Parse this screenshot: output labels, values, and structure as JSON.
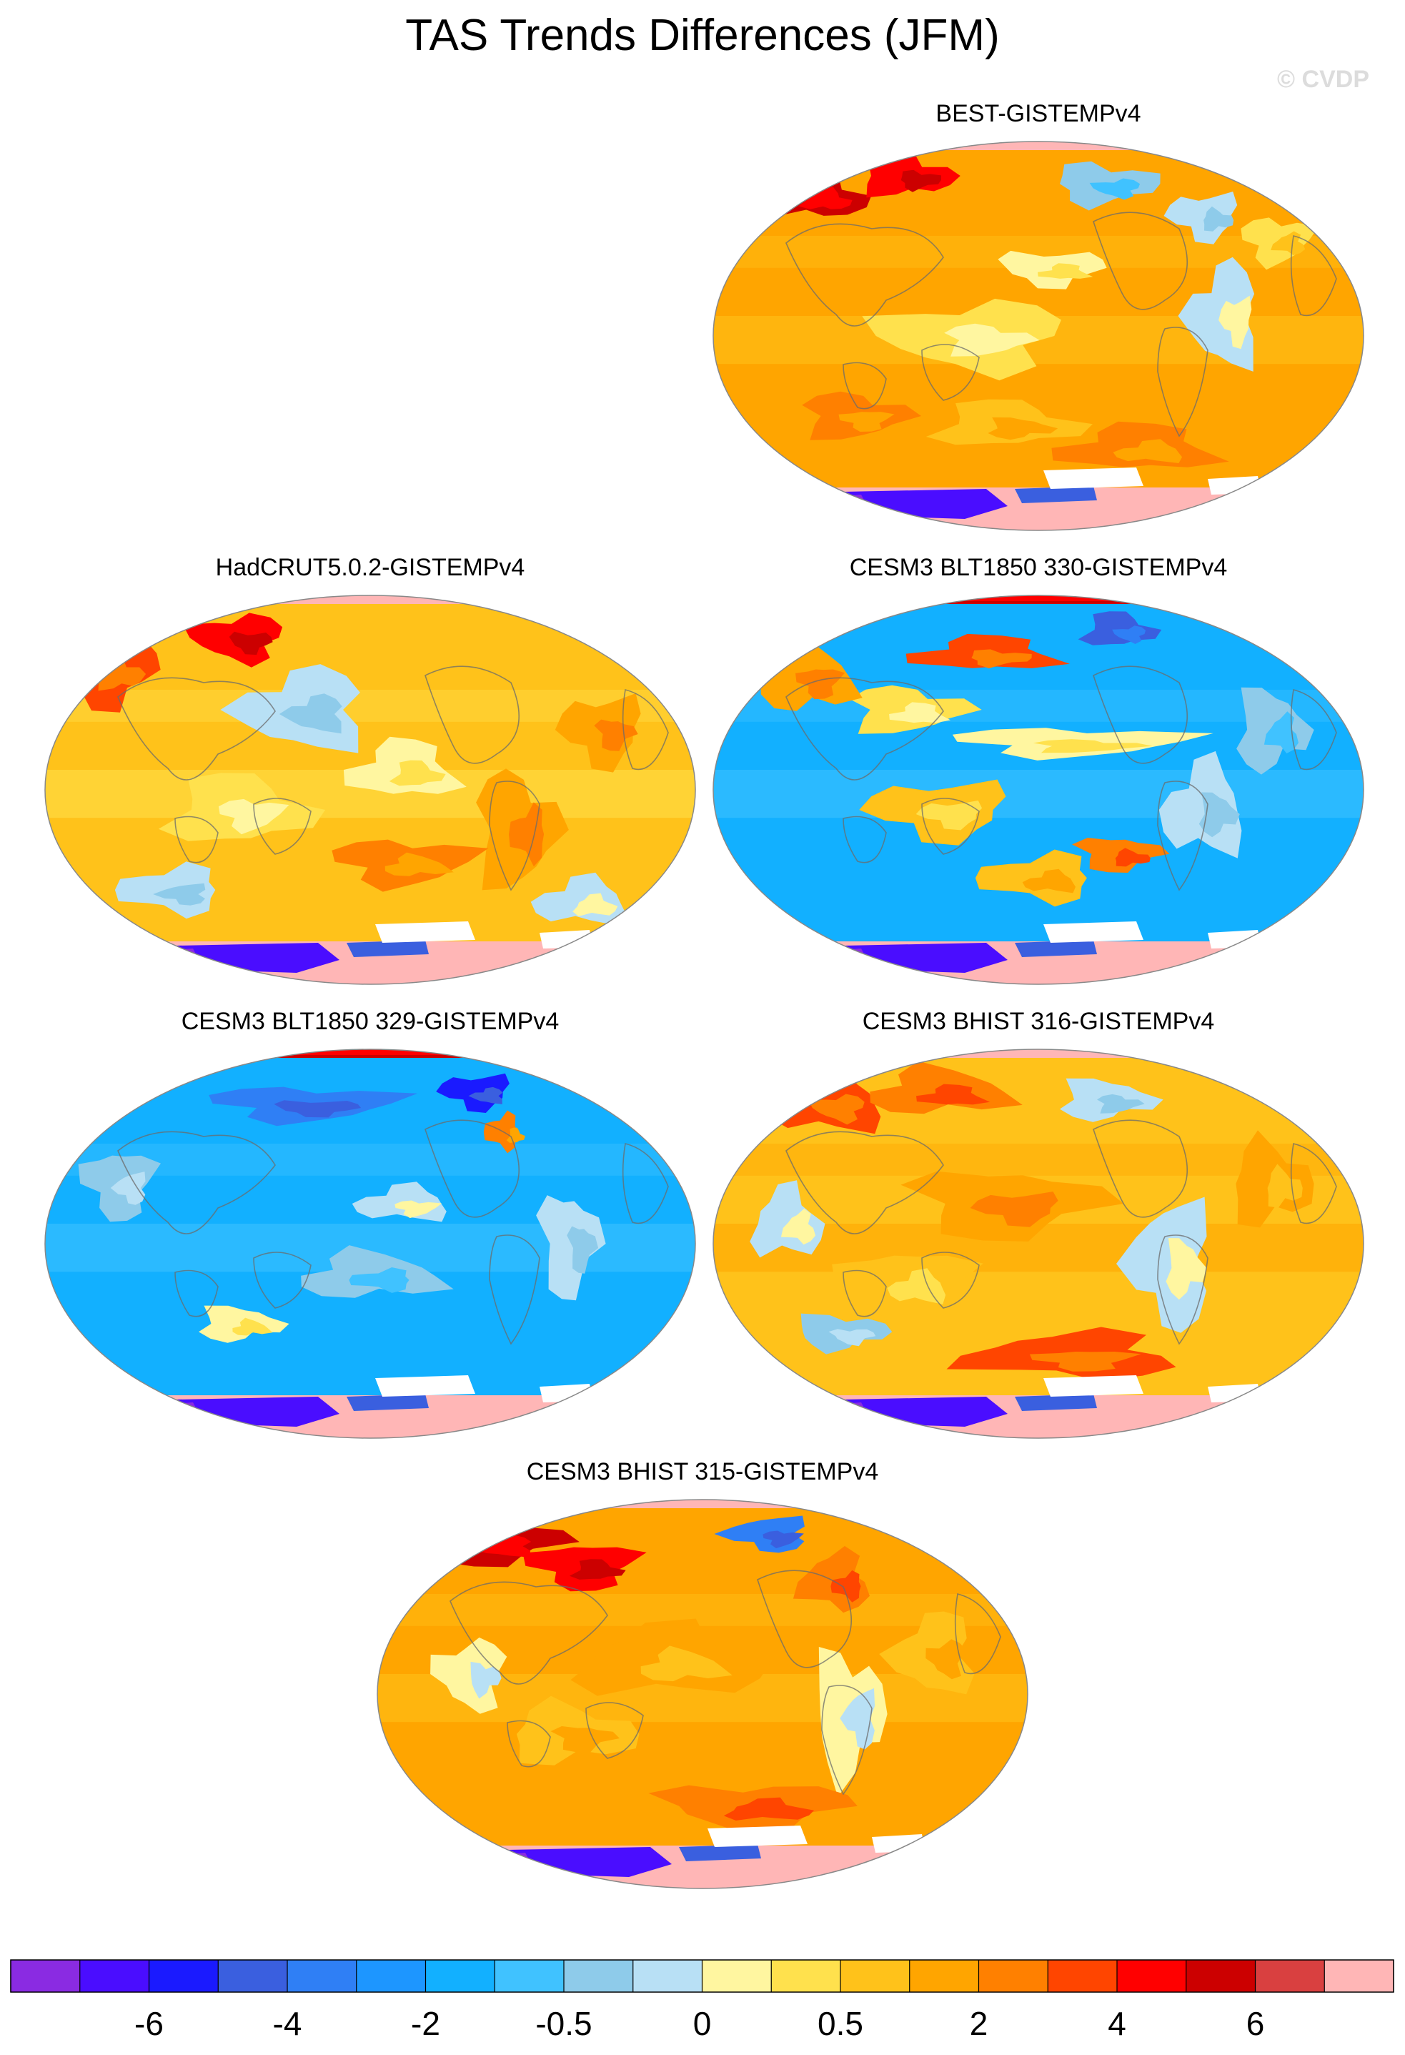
{
  "figure": {
    "title": "TAS Trends Differences (JFM)",
    "watermark": "© CVDP"
  },
  "colors": {
    "land_outline": "#6b6b6b",
    "map_edge": "#888888",
    "no_data": "#ffffff"
  },
  "chart_data": [
    {
      "type": "heatmap",
      "title": "BEST-GISTEMPv4",
      "projection": "Winkel tripel",
      "dominant_level": "0.5 to 1",
      "polar_fill": "pink"
    },
    {
      "type": "heatmap",
      "title": "HadCRUT5.0.2-GISTEMPv4",
      "projection": "Winkel tripel",
      "dominant_level": "0 to 0.5",
      "polar_fill": "pink"
    },
    {
      "type": "heatmap",
      "title": "CESM3 BLT1850 330-GISTEMPv4",
      "projection": "Winkel tripel",
      "dominant_level": "-2 to -1",
      "polar_fill": "red"
    },
    {
      "type": "heatmap",
      "title": "CESM3 BLT1850 329-GISTEMPv4",
      "projection": "Winkel tripel",
      "dominant_level": "-2 to -1",
      "polar_fill": "red"
    },
    {
      "type": "heatmap",
      "title": "CESM3 BHIST 316-GISTEMPv4",
      "projection": "Winkel tripel",
      "dominant_level": "0.5 to 1",
      "polar_fill": "pink"
    },
    {
      "type": "heatmap",
      "title": "CESM3 BHIST 315-GISTEMPv4",
      "projection": "Winkel tripel",
      "dominant_level": "1 to 2",
      "polar_fill": "pink"
    }
  ],
  "colorbar": {
    "colors": [
      "#8a2be2",
      "#4a0dff",
      "#1a1aff",
      "#3a5fdf",
      "#2f7ff5",
      "#1d96ff",
      "#12b0ff",
      "#40c2ff",
      "#8ecbea",
      "#b8e0f5",
      "#fff6a0",
      "#ffe14d",
      "#ffc21a",
      "#ffa500",
      "#ff8000",
      "#ff4500",
      "#ff0000",
      "#cc0000",
      "#d94040",
      "#ffb6b6"
    ],
    "labels": [
      {
        "text": "-6",
        "boundary": 2
      },
      {
        "text": "-4",
        "boundary": 4
      },
      {
        "text": "-2",
        "boundary": 6
      },
      {
        "text": "-0.5",
        "boundary": 8
      },
      {
        "text": "0",
        "boundary": 10
      },
      {
        "text": "0.5",
        "boundary": 12
      },
      {
        "text": "2",
        "boundary": 14
      },
      {
        "text": "4",
        "boundary": 16
      },
      {
        "text": "6",
        "boundary": 18
      }
    ]
  }
}
